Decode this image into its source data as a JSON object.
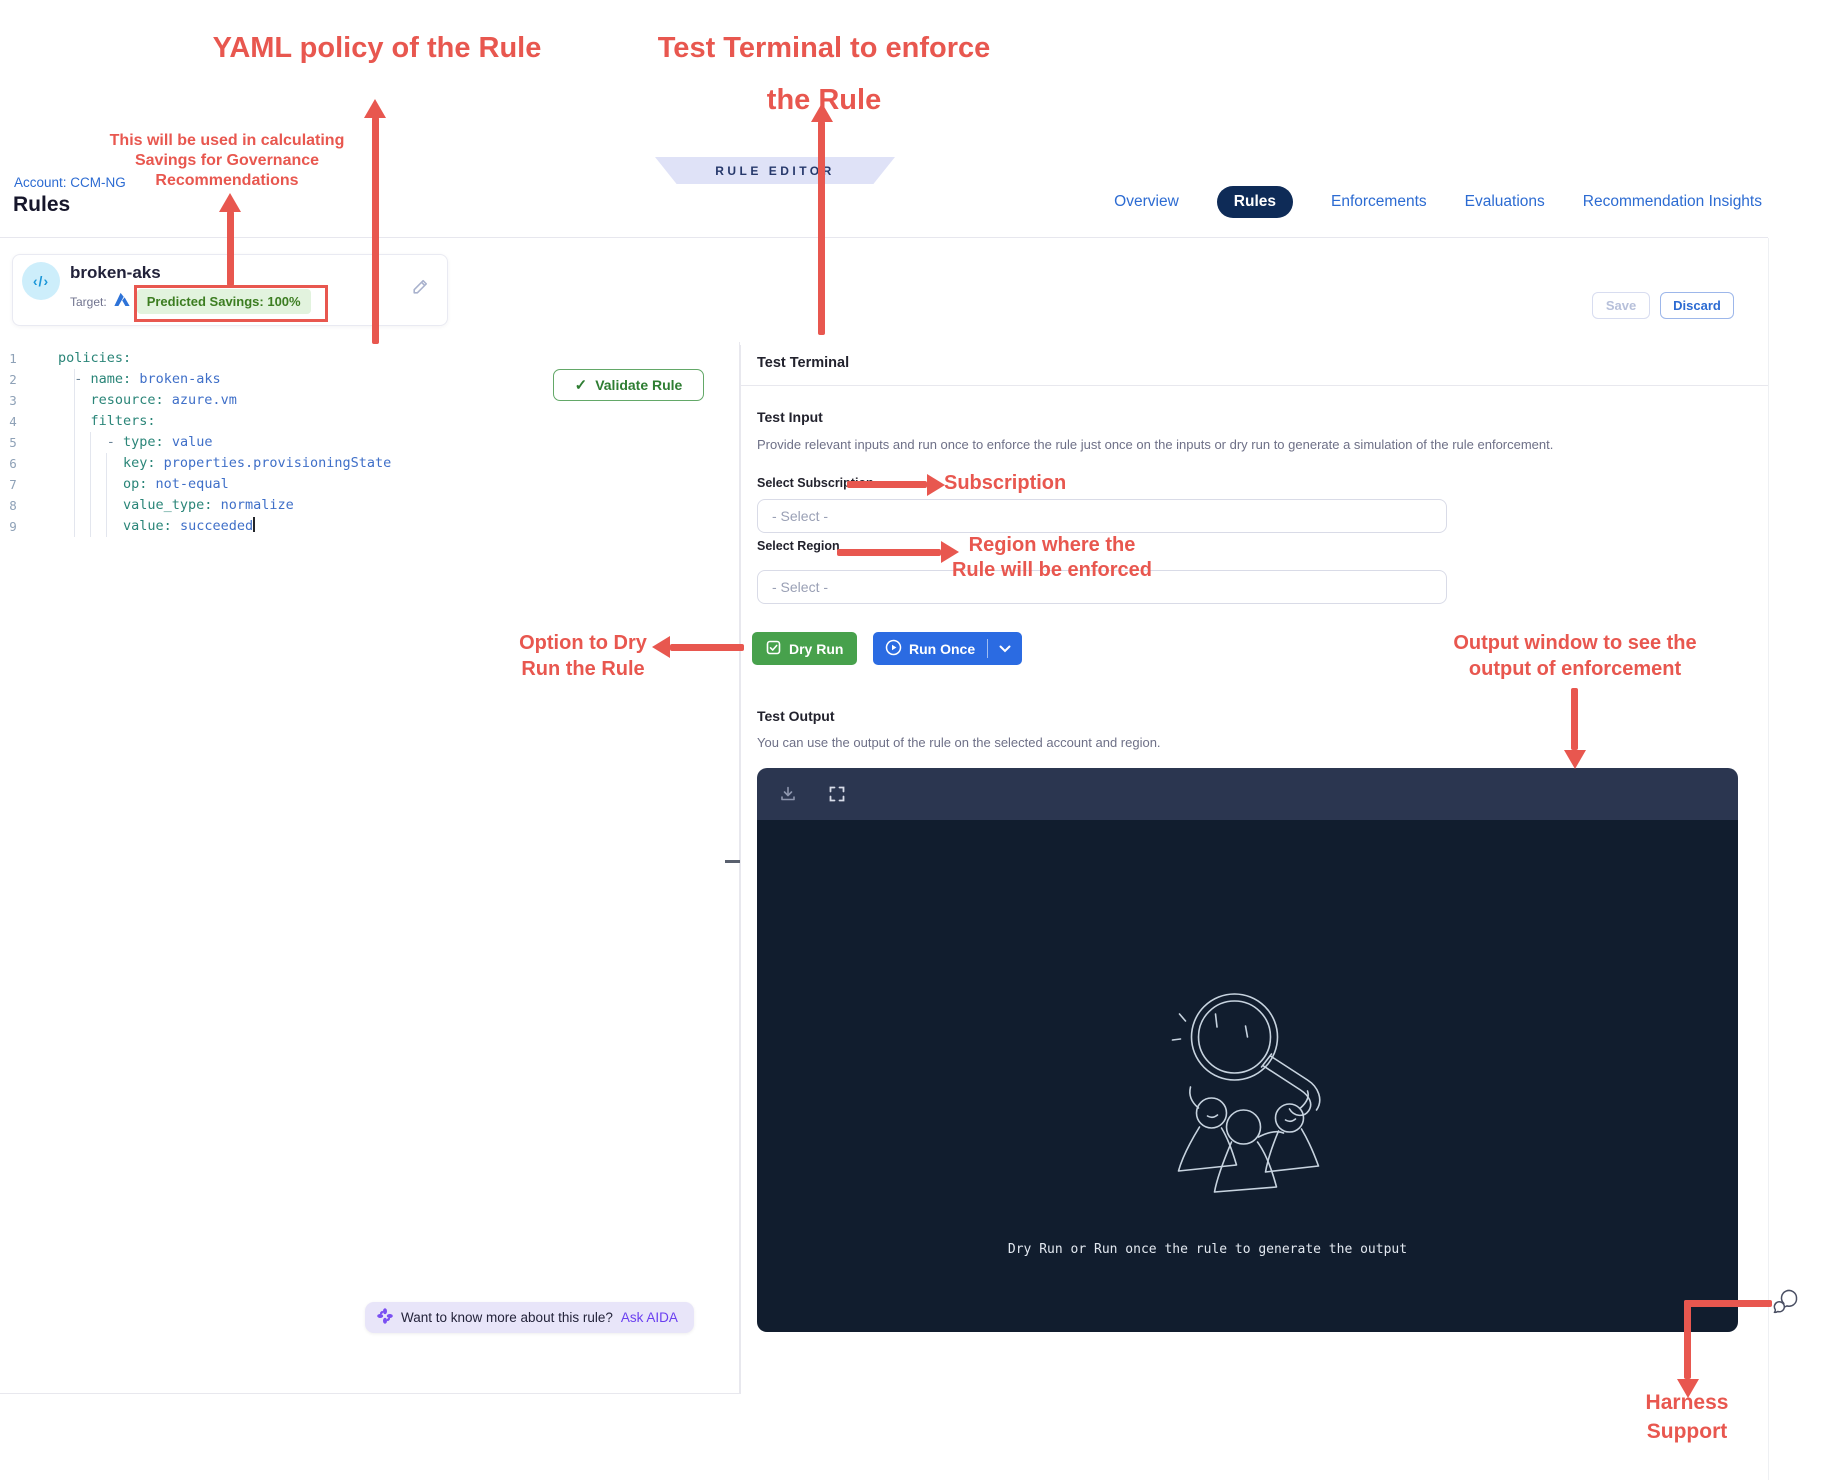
{
  "colors": {
    "annotation_red": "#e8574f",
    "link_blue": "#2c6bd2",
    "active_tab_bg": "#0e2b57",
    "dry_run_green": "#47a14c",
    "run_once_blue": "#2b6be2",
    "validate_green": "#2e7d32",
    "badge_bg": "#e2f3de",
    "badge_text": "#3c7d21",
    "terminal_header_bg": "#2b3650",
    "terminal_body_bg": "#111d2e",
    "aida_bg": "#e8e5f9",
    "aida_purple": "#6a3ff0",
    "ribbon_bg": "#dfe2f7",
    "ribbon_text": "#26386b",
    "key_teal": "#2a8578",
    "value_blue": "#3f6fc8"
  },
  "header": {
    "account_label": "Account: CCM-NG",
    "page_title": "Rules",
    "ribbon_label": "RULE EDITOR",
    "tabs": [
      {
        "label": "Overview",
        "active": false
      },
      {
        "label": "Rules",
        "active": true
      },
      {
        "label": "Enforcements",
        "active": false
      },
      {
        "label": "Evaluations",
        "active": false
      },
      {
        "label": "Recommendation Insights",
        "active": false
      }
    ],
    "save_label": "Save",
    "discard_label": "Discard"
  },
  "rule_card": {
    "icon_glyph": "‹/›",
    "name": "broken-aks",
    "target_label": "Target:",
    "savings_badge": "Predicted Savings: 100%"
  },
  "editor": {
    "validate_label": "Validate Rule",
    "lines": [
      {
        "n": "1",
        "segs": [
          [
            "policies:",
            "key"
          ]
        ]
      },
      {
        "n": "2",
        "segs": [
          [
            "  ",
            "pl"
          ],
          [
            "- ",
            "dash"
          ],
          [
            "name: ",
            "key"
          ],
          [
            "broken-aks",
            "val"
          ]
        ]
      },
      {
        "n": "3",
        "segs": [
          [
            "    ",
            "pl"
          ],
          [
            "resource: ",
            "key"
          ],
          [
            "azure.vm",
            "val"
          ]
        ]
      },
      {
        "n": "4",
        "segs": [
          [
            "    ",
            "pl"
          ],
          [
            "filters:",
            "key"
          ]
        ]
      },
      {
        "n": "5",
        "segs": [
          [
            "      ",
            "pl"
          ],
          [
            "- ",
            "dash"
          ],
          [
            "type: ",
            "key"
          ],
          [
            "value",
            "val"
          ]
        ]
      },
      {
        "n": "6",
        "segs": [
          [
            "        ",
            "pl"
          ],
          [
            "key: ",
            "key"
          ],
          [
            "properties.provisioningState",
            "val"
          ]
        ]
      },
      {
        "n": "7",
        "segs": [
          [
            "        ",
            "pl"
          ],
          [
            "op: ",
            "key"
          ],
          [
            "not-equal",
            "val"
          ]
        ]
      },
      {
        "n": "8",
        "segs": [
          [
            "        ",
            "pl"
          ],
          [
            "value_type: ",
            "key"
          ],
          [
            "normalize",
            "val"
          ]
        ]
      },
      {
        "n": "9",
        "segs": [
          [
            "        ",
            "pl"
          ],
          [
            "value: ",
            "key"
          ],
          [
            "succeeded",
            "val"
          ]
        ],
        "cursor": true
      }
    ]
  },
  "aida": {
    "question": "Want to know more about this rule?",
    "action": "Ask AIDA"
  },
  "test_terminal": {
    "title": "Test Terminal",
    "input": {
      "title": "Test Input",
      "description": "Provide relevant inputs and run once to enforce the rule just once on the inputs or dry run to generate a simulation of the rule enforcement.",
      "subscription_label": "Select Subscription",
      "subscription_placeholder": "- Select -",
      "region_label": "Select Region",
      "region_placeholder": "- Select -",
      "dry_run_label": "Dry Run",
      "run_once_label": "Run Once"
    },
    "output": {
      "title": "Test Output",
      "description": "You can use the output of the rule on the selected account and region.",
      "empty_message": "Dry Run or Run once the rule to generate the output"
    }
  },
  "annotations": {
    "yaml_policy": {
      "text": "YAML policy of the Rule"
    },
    "test_terminal": {
      "line1": "Test Terminal to enforce",
      "line2": "the Rule"
    },
    "savings": {
      "line1": "This will be used in calculating",
      "line2": "Savings for Governance",
      "line3": "Recommendations"
    },
    "subscription": {
      "text": "Subscription"
    },
    "region": {
      "line1": "Region where the",
      "line2": "Rule will be enforced"
    },
    "dry_run": {
      "line1": "Option to Dry",
      "line2": "Run the Rule"
    },
    "output_window": {
      "line1": "Output window to see the",
      "line2": "output of enforcement"
    },
    "support": {
      "line1": "Harness",
      "line2": "Support"
    }
  }
}
